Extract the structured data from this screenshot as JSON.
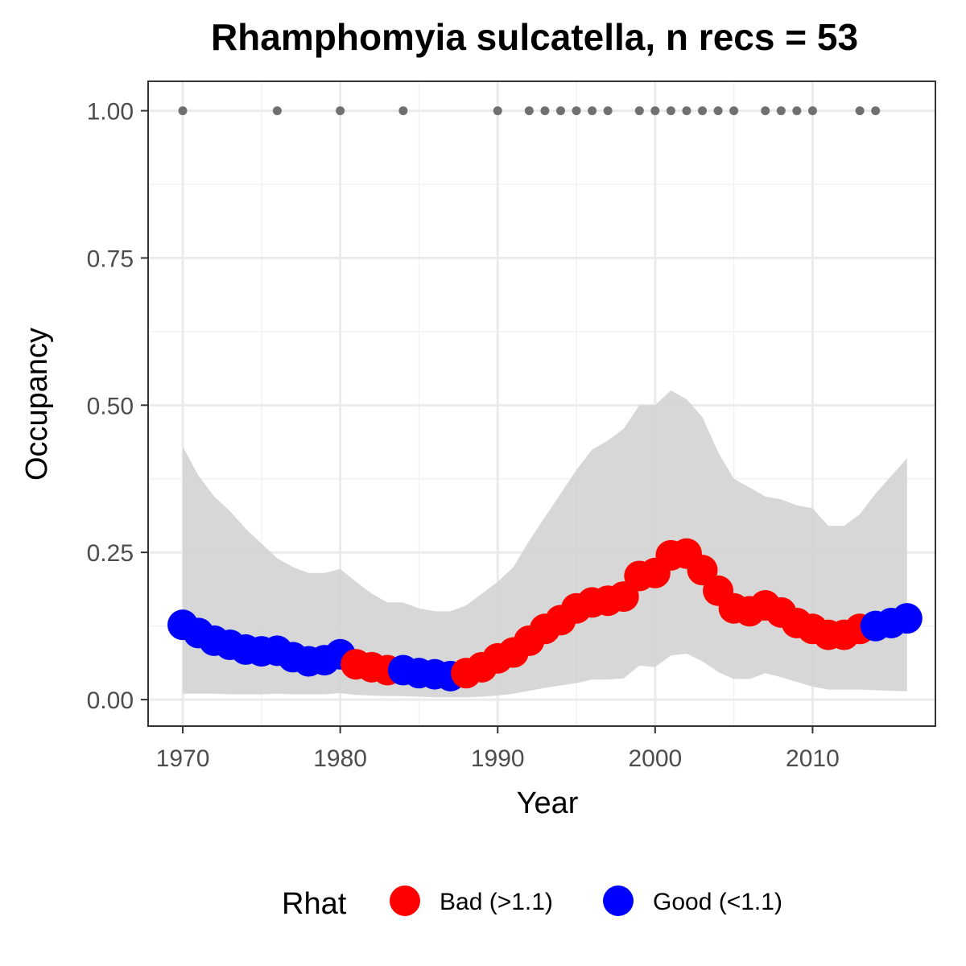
{
  "chart_data": {
    "type": "line",
    "title": "Rhamphomyia sulcatella, n recs = 53",
    "xlabel": "Year",
    "ylabel": "Occupancy",
    "xlim": [
      1967.8,
      2017.8
    ],
    "ylim": [
      -0.045,
      1.05
    ],
    "x_ticks": [
      1970,
      1980,
      1990,
      2000,
      2010
    ],
    "x_tick_labels": [
      "1970",
      "1980",
      "1990",
      "2000",
      "2010"
    ],
    "y_ticks": [
      0,
      0.25,
      0.5,
      0.75,
      1.0
    ],
    "y_tick_labels": [
      "0.00",
      "0.25",
      "0.50",
      "0.75",
      "1.00"
    ],
    "grid": true,
    "legend": {
      "title": "Rhat",
      "position": "bottom",
      "entries": [
        {
          "key": "bad",
          "label": "Bad (>1.1)",
          "color": "#ff0000"
        },
        {
          "key": "good",
          "label": "Good (<1.1)",
          "color": "#0000ff"
        }
      ]
    },
    "series": [
      {
        "role": "occupancy",
        "x": [
          1970,
          1971,
          1972,
          1973,
          1974,
          1975,
          1976,
          1977,
          1978,
          1979,
          1980,
          1981,
          1982,
          1983,
          1984,
          1985,
          1986,
          1987,
          1988,
          1989,
          1990,
          1991,
          1992,
          1993,
          1994,
          1995,
          1996,
          1997,
          1998,
          1999,
          2000,
          2001,
          2002,
          2003,
          2004,
          2005,
          2006,
          2007,
          2008,
          2009,
          2010,
          2011,
          2012,
          2013,
          2014,
          2015,
          2016
        ],
        "y": [
          0.127,
          0.113,
          0.1,
          0.093,
          0.085,
          0.082,
          0.083,
          0.072,
          0.065,
          0.067,
          0.077,
          0.06,
          0.055,
          0.05,
          0.05,
          0.045,
          0.043,
          0.04,
          0.045,
          0.055,
          0.07,
          0.08,
          0.1,
          0.12,
          0.135,
          0.155,
          0.165,
          0.168,
          0.175,
          0.21,
          0.215,
          0.245,
          0.248,
          0.22,
          0.185,
          0.155,
          0.15,
          0.16,
          0.148,
          0.13,
          0.12,
          0.11,
          0.11,
          0.12,
          0.125,
          0.13,
          0.138
        ],
        "rhat": [
          "good",
          "good",
          "good",
          "good",
          "good",
          "good",
          "good",
          "good",
          "good",
          "good",
          "good",
          "bad",
          "bad",
          "bad",
          "good",
          "good",
          "good",
          "good",
          "bad",
          "bad",
          "bad",
          "bad",
          "bad",
          "bad",
          "bad",
          "bad",
          "bad",
          "bad",
          "bad",
          "bad",
          "bad",
          "bad",
          "bad",
          "bad",
          "bad",
          "bad",
          "bad",
          "bad",
          "bad",
          "bad",
          "bad",
          "bad",
          "bad",
          "bad",
          "good",
          "good",
          "good"
        ]
      },
      {
        "role": "credible_interval_upper",
        "x": [
          1970,
          1971,
          1972,
          1973,
          1974,
          1975,
          1976,
          1977,
          1978,
          1979,
          1980,
          1981,
          1982,
          1983,
          1984,
          1985,
          1986,
          1987,
          1988,
          1989,
          1990,
          1991,
          1992,
          1993,
          1994,
          1995,
          1996,
          1997,
          1998,
          1999,
          2000,
          2001,
          2002,
          2003,
          2004,
          2005,
          2006,
          2007,
          2008,
          2009,
          2010,
          2011,
          2012,
          2013,
          2014,
          2015,
          2016
        ],
        "y": [
          0.43,
          0.38,
          0.345,
          0.32,
          0.29,
          0.265,
          0.24,
          0.225,
          0.215,
          0.215,
          0.222,
          0.2,
          0.18,
          0.165,
          0.165,
          0.155,
          0.15,
          0.15,
          0.16,
          0.18,
          0.2,
          0.225,
          0.27,
          0.31,
          0.35,
          0.39,
          0.425,
          0.44,
          0.46,
          0.5,
          0.5,
          0.525,
          0.51,
          0.48,
          0.42,
          0.375,
          0.36,
          0.345,
          0.34,
          0.33,
          0.325,
          0.295,
          0.295,
          0.315,
          0.35,
          0.38,
          0.41
        ]
      },
      {
        "role": "credible_interval_lower",
        "x": [
          1970,
          1971,
          1972,
          1973,
          1974,
          1975,
          1976,
          1977,
          1978,
          1979,
          1980,
          1981,
          1982,
          1983,
          1984,
          1985,
          1986,
          1987,
          1988,
          1989,
          1990,
          1991,
          1992,
          1993,
          1994,
          1995,
          1996,
          1997,
          1998,
          1999,
          2000,
          2001,
          2002,
          2003,
          2004,
          2005,
          2006,
          2007,
          2008,
          2009,
          2010,
          2011,
          2012,
          2013,
          2014,
          2015,
          2016
        ],
        "y": [
          0.01,
          0.01,
          0.01,
          0.009,
          0.009,
          0.009,
          0.01,
          0.009,
          0.009,
          0.009,
          0.011,
          0.008,
          0.007,
          0.006,
          0.006,
          0.005,
          0.004,
          0.004,
          0.004,
          0.005,
          0.007,
          0.01,
          0.015,
          0.02,
          0.024,
          0.028,
          0.034,
          0.034,
          0.036,
          0.058,
          0.055,
          0.075,
          0.078,
          0.065,
          0.047,
          0.035,
          0.035,
          0.045,
          0.038,
          0.03,
          0.022,
          0.017,
          0.017,
          0.017,
          0.016,
          0.015,
          0.014
        ]
      },
      {
        "role": "records",
        "x": [
          1970,
          1976,
          1980,
          1984,
          1990,
          1992,
          1993,
          1994,
          1995,
          1996,
          1997,
          1999,
          2000,
          2001,
          2002,
          2003,
          2004,
          2005,
          2007,
          2008,
          2009,
          2010,
          2013,
          2014
        ],
        "y": [
          1,
          1,
          1,
          1,
          1,
          1,
          1,
          1,
          1,
          1,
          1,
          1,
          1,
          1,
          1,
          1,
          1,
          1,
          1,
          1,
          1,
          1,
          1,
          1
        ]
      }
    ],
    "colors": {
      "ribbon": "#d3d3d3",
      "records": "#707070",
      "grid_major": "#ebebeb",
      "grid_minor": "#f2f2f2",
      "panel_border": "#333333",
      "tick_text": "#4d4d4d"
    }
  }
}
